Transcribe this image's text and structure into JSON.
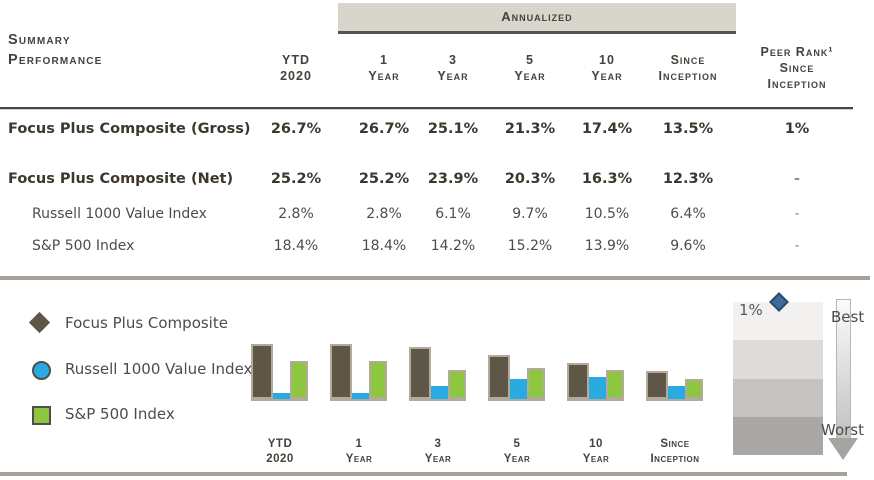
{
  "table": {
    "title_line1": "Summary",
    "title_line2": "Performance",
    "annualized_label": "Annualized",
    "columns": [
      {
        "l1": "YTD",
        "l2": "2020"
      },
      {
        "l1": "1",
        "l2": "Year"
      },
      {
        "l1": "3",
        "l2": "Year"
      },
      {
        "l1": "5",
        "l2": "Year"
      },
      {
        "l1": "10",
        "l2": "Year"
      },
      {
        "l1": "Since",
        "l2": "Inception"
      },
      {
        "l1": "Peer Rank¹",
        "l2": "Since",
        "l3": "Inception"
      }
    ],
    "rows": [
      {
        "label": "Focus Plus Composite (Gross)",
        "values": [
          "26.7%",
          "26.7%",
          "25.1%",
          "21.3%",
          "17.4%",
          "13.5%"
        ],
        "peer": "1%"
      },
      {
        "label": "Focus Plus Composite (Net)",
        "values": [
          "25.2%",
          "25.2%",
          "23.9%",
          "20.3%",
          "16.3%",
          "12.3%"
        ],
        "peer": "-"
      },
      {
        "label": "Russell 1000 Value Index",
        "values": [
          "2.8%",
          "2.8%",
          "6.1%",
          "9.7%",
          "10.5%",
          "6.4%"
        ],
        "peer": "-"
      },
      {
        "label": "S&P 500 Index",
        "values": [
          "18.4%",
          "18.4%",
          "14.2%",
          "15.2%",
          "13.9%",
          "9.6%"
        ],
        "peer": "-"
      }
    ]
  },
  "legend": [
    {
      "label": "Focus Plus Composite",
      "marker": "diamond",
      "color": "#5e5748"
    },
    {
      "label": "Russell 1000 Value Index",
      "marker": "circle",
      "color": "#29abe2"
    },
    {
      "label": "S&P 500 Index",
      "marker": "square",
      "color": "#8dc63f"
    }
  ],
  "chart_data": {
    "type": "bar",
    "title": "",
    "xlabel": "",
    "ylabel": "",
    "ylim": [
      0,
      28
    ],
    "grid": false,
    "legend_position": "left",
    "categories": [
      {
        "l1": "YTD",
        "l2": "2020"
      },
      {
        "l1": "1",
        "l2": "Year"
      },
      {
        "l1": "3",
        "l2": "Year"
      },
      {
        "l1": "5",
        "l2": "Year"
      },
      {
        "l1": "10",
        "l2": "Year"
      },
      {
        "l1": "Since",
        "l2": "Inception"
      }
    ],
    "series": [
      {
        "name": "Focus Plus Composite",
        "color": "#5e5748",
        "values": [
          26.7,
          26.7,
          25.1,
          21.3,
          17.4,
          13.5
        ]
      },
      {
        "name": "Russell 1000 Value Index",
        "color": "#29abe2",
        "values": [
          2.8,
          2.8,
          6.1,
          9.7,
          10.5,
          6.4
        ]
      },
      {
        "name": "S&P 500 Index",
        "color": "#8dc63f",
        "values": [
          18.4,
          18.4,
          14.2,
          15.2,
          13.9,
          9.6
        ]
      }
    ]
  },
  "peer_rank": {
    "value_label": "1%",
    "best_label": "Best",
    "worst_label": "Worst",
    "marker_color": "#3e6d9d",
    "band_colors": [
      "#f2f1f0",
      "#dddcda",
      "#c4c3c1",
      "#a9a8a5"
    ]
  },
  "colors": {
    "accent_dark_brown": "#47413a",
    "annualized_bg": "#d8d5cd",
    "thick_rule": "#a8a199",
    "bar_border_tan": "#b3aa9b"
  }
}
